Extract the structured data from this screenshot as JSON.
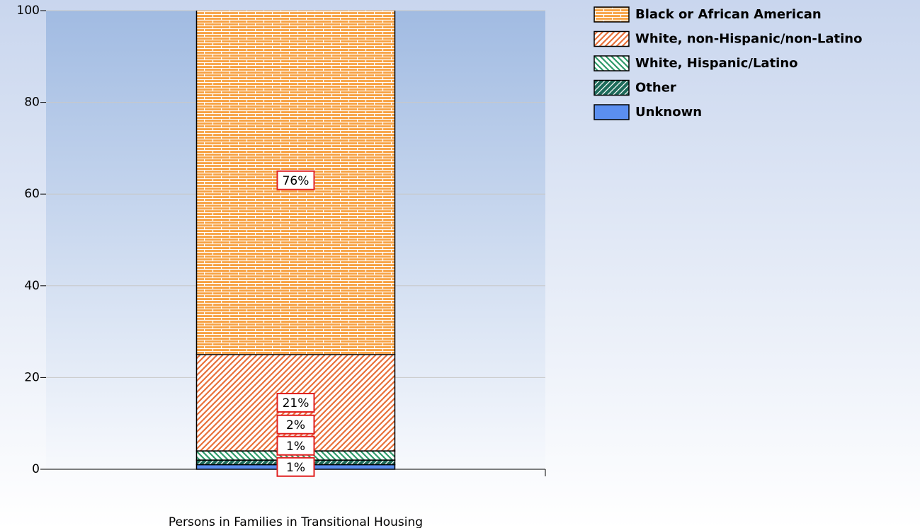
{
  "chart_data": {
    "type": "stacked_bar",
    "categories": [
      "Persons in Families in Transitional Housing"
    ],
    "series": [
      {
        "name": "Unknown",
        "color": "#5b8ff0",
        "values": [
          1
        ],
        "value_labels": [
          "1%"
        ]
      },
      {
        "name": "Other",
        "color": "#1e6b5a",
        "values": [
          1
        ],
        "value_labels": [
          "1%"
        ]
      },
      {
        "name": "White, Hispanic/Latino",
        "color": "#2e9a6a",
        "values": [
          2
        ],
        "value_labels": [
          "2%"
        ]
      },
      {
        "name": "White, non-Hispanic/non-Latino",
        "color": "#e8703a",
        "values": [
          21
        ],
        "value_labels": [
          "21%"
        ]
      },
      {
        "name": "Black or African American",
        "color": "#f7a040",
        "values": [
          76
        ],
        "value_labels": [
          "76%"
        ]
      }
    ],
    "ylim": [
      0,
      100
    ],
    "yticks": [
      0,
      20,
      40,
      60,
      80,
      100
    ],
    "grid": true
  }
}
